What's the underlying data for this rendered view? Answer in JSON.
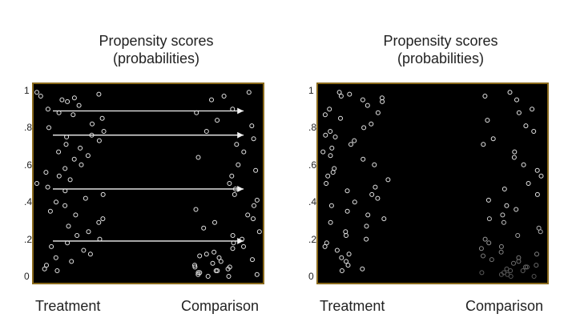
{
  "chart_data": [
    {
      "type": "scatter",
      "title": [
        "Propensity scores",
        "(probabilities)"
      ],
      "xlabel": "",
      "ylabel": "",
      "categories": [
        "Treatment",
        "Comparison"
      ],
      "ylim": [
        0,
        1
      ],
      "yticks": [
        0,
        0.2,
        0.4,
        0.6,
        0.8,
        1
      ],
      "ytick_labels": [
        "0",
        ".2",
        ".4",
        ".6",
        ".8",
        "1"
      ],
      "grid": false,
      "matching_arrows": [
        0.89,
        0.76,
        0.47,
        0.19
      ],
      "series": [
        {
          "name": "Treatment",
          "color": "#e6e6e6",
          "values": [
            0.99,
            0.98,
            0.97,
            0.96,
            0.95,
            0.94,
            0.92,
            0.9,
            0.88,
            0.87,
            0.85,
            0.82,
            0.8,
            0.78,
            0.76,
            0.75,
            0.73,
            0.71,
            0.69,
            0.67,
            0.65,
            0.63,
            0.6,
            0.58,
            0.56,
            0.54,
            0.52,
            0.5,
            0.48,
            0.46,
            0.44,
            0.42,
            0.4,
            0.38,
            0.35,
            0.33,
            0.31,
            0.29,
            0.27,
            0.24,
            0.22,
            0.2,
            0.18,
            0.16,
            0.14,
            0.12,
            0.1,
            0.08,
            0.06,
            0.04,
            0.03
          ]
        },
        {
          "name": "Comparison",
          "color": "#e6e6e6",
          "values": [
            0.99,
            0.97,
            0.95,
            0.9,
            0.88,
            0.84,
            0.81,
            0.78,
            0.74,
            0.71,
            0.67,
            0.64,
            0.6,
            0.57,
            0.54,
            0.5,
            0.47,
            0.44,
            0.41,
            0.38,
            0.36,
            0.33,
            0.31,
            0.29,
            0.26,
            0.24,
            0.22,
            0.2,
            0.18,
            0.16,
            0.15,
            0.13,
            0.12,
            0.11,
            0.1,
            0.09,
            0.08,
            0.07,
            0.06,
            0.05,
            0.05,
            0.04,
            0.03,
            0.03,
            0.02,
            0.02,
            0.01,
            0.01,
            0.0,
            0.0
          ]
        }
      ]
    },
    {
      "type": "scatter",
      "title": [
        "Propensity scores",
        "(probabilities)"
      ],
      "xlabel": "",
      "ylabel": "",
      "categories": [
        "Treatment",
        "Comparison"
      ],
      "ylim": [
        0,
        1
      ],
      "yticks": [
        0,
        0.2,
        0.4,
        0.6,
        0.8,
        1
      ],
      "ytick_labels": [
        "0",
        ".2",
        ".4",
        ".6",
        ".8",
        "1"
      ],
      "grid": false,
      "comparison_fades_near_zero": true,
      "series": [
        {
          "name": "Treatment",
          "color": "#e6e6e6",
          "values": [
            0.99,
            0.98,
            0.97,
            0.96,
            0.95,
            0.94,
            0.92,
            0.9,
            0.88,
            0.87,
            0.85,
            0.82,
            0.8,
            0.78,
            0.76,
            0.75,
            0.73,
            0.71,
            0.69,
            0.67,
            0.65,
            0.63,
            0.6,
            0.58,
            0.56,
            0.54,
            0.52,
            0.5,
            0.48,
            0.46,
            0.44,
            0.42,
            0.4,
            0.38,
            0.35,
            0.33,
            0.31,
            0.29,
            0.27,
            0.24,
            0.22,
            0.2,
            0.18,
            0.16,
            0.14,
            0.12,
            0.1,
            0.08,
            0.06,
            0.04,
            0.03
          ]
        },
        {
          "name": "Comparison",
          "color": "#e6e6e6",
          "values": [
            0.99,
            0.97,
            0.95,
            0.9,
            0.88,
            0.84,
            0.81,
            0.78,
            0.74,
            0.71,
            0.67,
            0.64,
            0.6,
            0.57,
            0.54,
            0.5,
            0.47,
            0.44,
            0.41,
            0.38,
            0.36,
            0.33,
            0.31,
            0.29,
            0.26,
            0.24,
            0.22,
            0.2,
            0.18,
            0.16,
            0.15,
            0.13,
            0.12,
            0.11,
            0.1,
            0.09,
            0.08,
            0.07,
            0.06,
            0.05,
            0.05,
            0.04,
            0.03,
            0.03,
            0.02,
            0.02,
            0.01,
            0.01,
            0.0,
            0.0
          ]
        }
      ]
    }
  ]
}
